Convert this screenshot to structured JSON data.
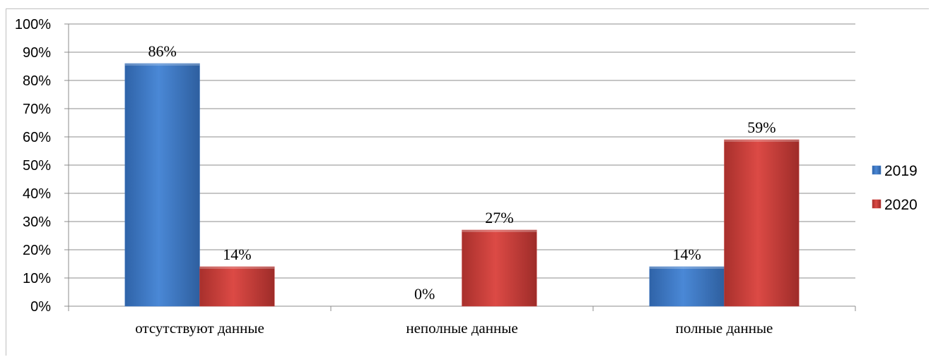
{
  "chart_data": {
    "type": "bar",
    "categories": [
      "отсутствуют данные",
      "неполные данные",
      "полные данные"
    ],
    "series": [
      {
        "name": "2019",
        "values": [
          86,
          0,
          14
        ],
        "labels": [
          "86%",
          "0%",
          "14%"
        ],
        "color": "#3f79c6"
      },
      {
        "name": "2020",
        "values": [
          14,
          27,
          59
        ],
        "labels": [
          "14%",
          "27%",
          "59%"
        ],
        "color": "#c8413d"
      }
    ],
    "yticks": [
      "0%",
      "10%",
      "20%",
      "30%",
      "40%",
      "50%",
      "60%",
      "70%",
      "80%",
      "90%",
      "100%"
    ],
    "ylim": [
      0,
      100
    ],
    "grid": true,
    "legend": "right",
    "title": "",
    "xlabel": "",
    "ylabel": ""
  }
}
